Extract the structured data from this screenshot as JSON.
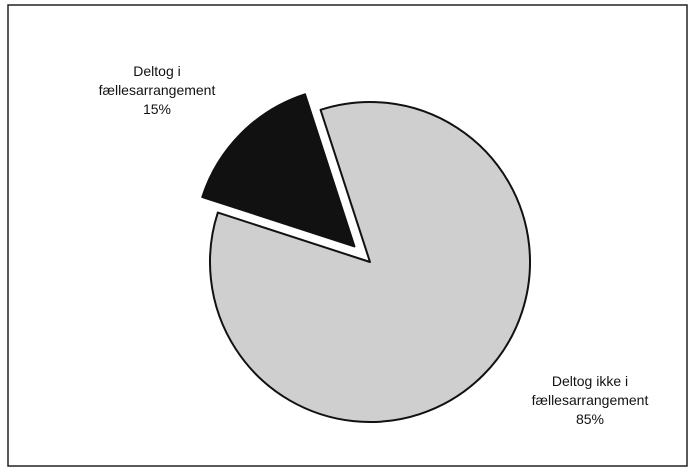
{
  "chart_data": {
    "type": "pie",
    "categories": [
      "Deltog i fællesarrangement",
      "Deltog ikke i fællesarrangement"
    ],
    "values": [
      15,
      85
    ],
    "value_labels": [
      "15%",
      "85%"
    ],
    "colors": [
      "#111111",
      "#cfcfcf"
    ],
    "explode": [
      true,
      false
    ]
  }
}
